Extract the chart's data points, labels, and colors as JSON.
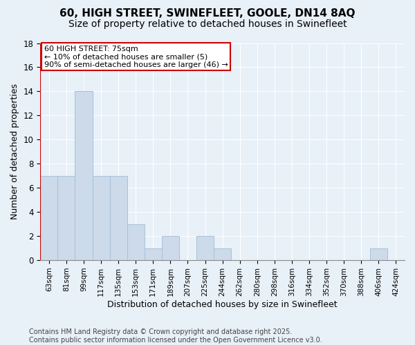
{
  "title_line1": "60, HIGH STREET, SWINEFLEET, GOOLE, DN14 8AQ",
  "title_line2": "Size of property relative to detached houses in Swinefleet",
  "xlabel": "Distribution of detached houses by size in Swinefleet",
  "ylabel": "Number of detached properties",
  "categories": [
    "63sqm",
    "81sqm",
    "99sqm",
    "117sqm",
    "135sqm",
    "153sqm",
    "171sqm",
    "189sqm",
    "207sqm",
    "225sqm",
    "244sqm",
    "262sqm",
    "280sqm",
    "298sqm",
    "316sqm",
    "334sqm",
    "352sqm",
    "370sqm",
    "388sqm",
    "406sqm",
    "424sqm"
  ],
  "values": [
    7,
    7,
    14,
    7,
    7,
    3,
    1,
    2,
    0,
    2,
    1,
    0,
    0,
    0,
    0,
    0,
    0,
    0,
    0,
    1,
    0
  ],
  "bar_color": "#ccdaea",
  "bar_edgecolor": "#a8c0d8",
  "background_color": "#e8f0f8",
  "red_line_x": -0.5,
  "annotation_title": "60 HIGH STREET: 75sqm",
  "annotation_line1": "← 10% of detached houses are smaller (5)",
  "annotation_line2": "90% of semi-detached houses are larger (46) →",
  "annotation_box_facecolor": "#ffffff",
  "annotation_box_edgecolor": "#cc0000",
  "ylim": [
    0,
    18
  ],
  "yticks": [
    0,
    2,
    4,
    6,
    8,
    10,
    12,
    14,
    16,
    18
  ],
  "footer_line1": "Contains HM Land Registry data © Crown copyright and database right 2025.",
  "footer_line2": "Contains public sector information licensed under the Open Government Licence v3.0.",
  "grid_color": "#ffffff",
  "title_fontsize": 11,
  "subtitle_fontsize": 10,
  "axis_label_fontsize": 9,
  "tick_fontsize": 7.5,
  "footer_fontsize": 7,
  "annotation_fontsize": 8
}
